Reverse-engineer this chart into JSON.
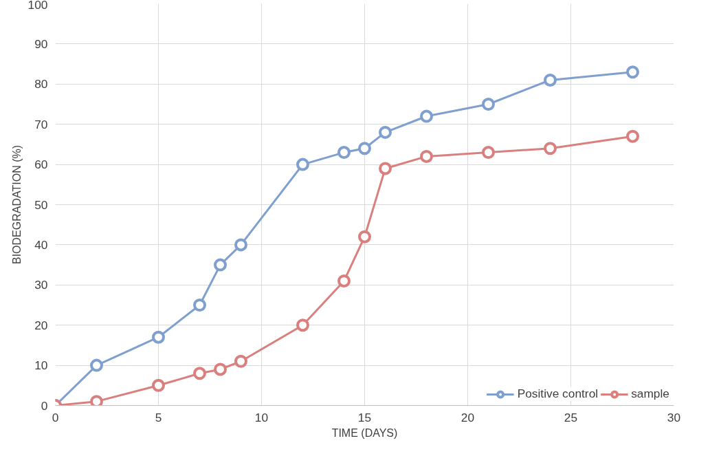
{
  "chart_data": {
    "type": "line",
    "xlabel": "TIME (DAYS)",
    "ylabel": "BIODEGRADATION (%)",
    "x": [
      0,
      2,
      5,
      7,
      8,
      9,
      12,
      14,
      15,
      16,
      18,
      21,
      24,
      28
    ],
    "series": [
      {
        "name": "Positive control",
        "color": "#7f9fcf",
        "values": [
          0,
          10,
          17,
          25,
          35,
          40,
          60,
          63,
          64,
          68,
          72,
          75,
          81,
          83
        ]
      },
      {
        "name": "sample",
        "color": "#d9807e",
        "values": [
          0,
          1,
          5,
          8,
          9,
          11,
          20,
          31,
          42,
          59,
          62,
          63,
          64,
          67
        ]
      }
    ],
    "xlim": [
      0,
      30
    ],
    "xticks": [
      0,
      5,
      10,
      15,
      20,
      25,
      30
    ],
    "ylim": [
      0,
      100
    ],
    "yticks": [
      0,
      10,
      20,
      30,
      40,
      50,
      60,
      70,
      80,
      90,
      100
    ],
    "grid": true,
    "legend": "bottom right",
    "marker": "circle",
    "line_style": "solid"
  }
}
